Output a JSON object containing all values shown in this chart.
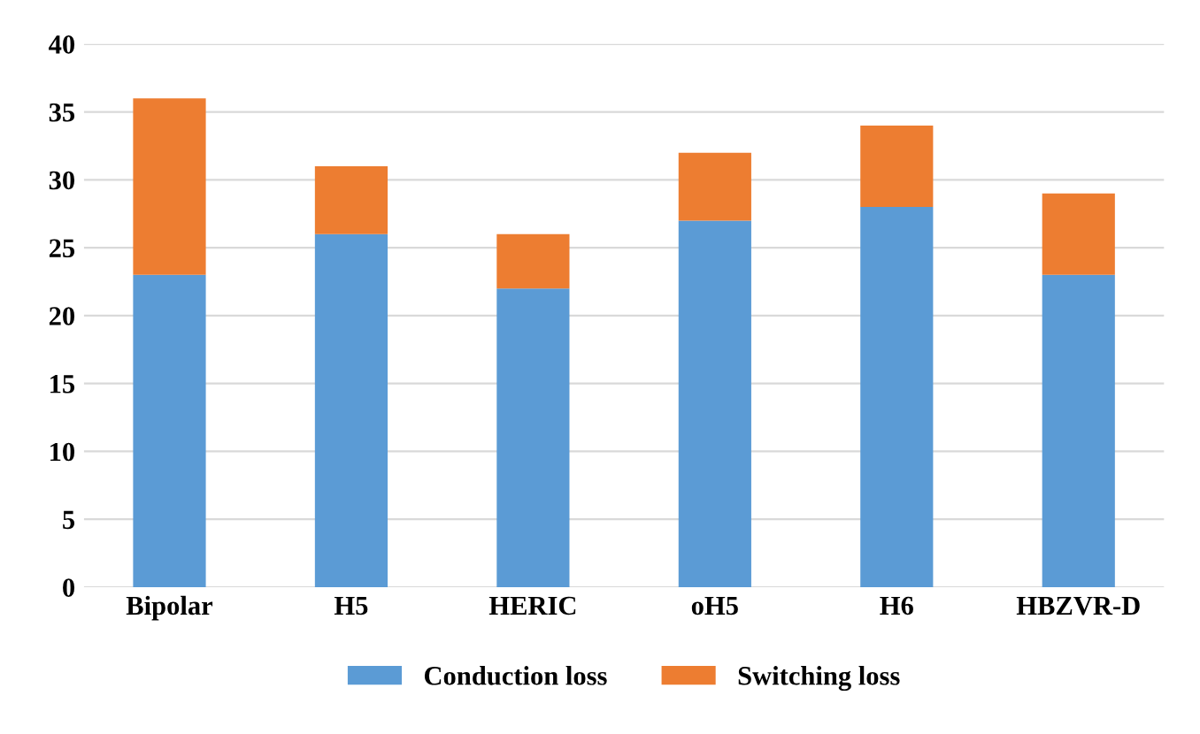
{
  "chart_data": {
    "type": "bar",
    "stacked": true,
    "categories": [
      "Bipolar",
      "H5",
      "HERIC",
      "oH5",
      "H6",
      "HBZVR-D"
    ],
    "series": [
      {
        "name": "Conduction loss",
        "color": "#5b9bd5",
        "values": [
          23,
          26,
          22,
          27,
          28,
          23
        ]
      },
      {
        "name": "Switching loss",
        "color": "#ed7d31",
        "values": [
          13,
          5,
          4,
          5,
          6,
          6
        ]
      }
    ],
    "ylim": [
      0,
      40
    ],
    "yticks": [
      0,
      5,
      10,
      15,
      20,
      25,
      30,
      35,
      40
    ],
    "grid": "y",
    "legend": "bottom"
  }
}
